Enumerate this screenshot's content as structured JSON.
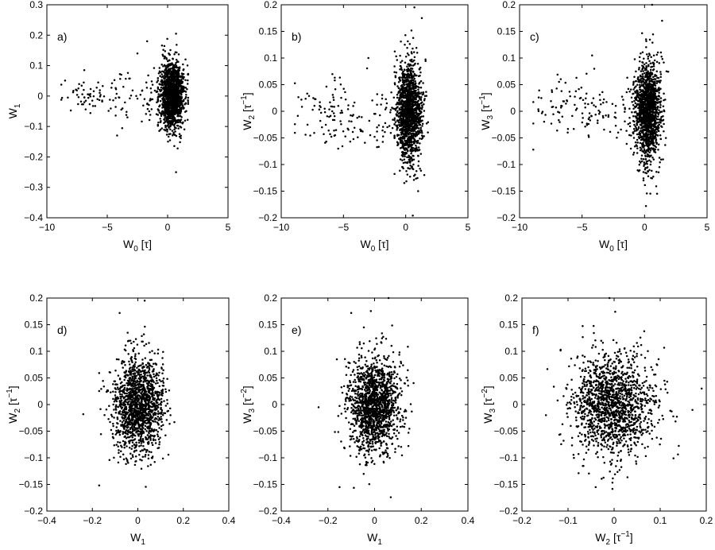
{
  "figure": {
    "panels": [
      {
        "id": "a",
        "panel_label": "a)",
        "xlabel": {
          "base": "W",
          "sub": "0",
          "unit": " [τ]",
          "sup": ""
        },
        "ylabel": {
          "base": "W",
          "sub": "1",
          "unit": "",
          "sup": ""
        }
      },
      {
        "id": "b",
        "panel_label": "b)",
        "xlabel": {
          "base": "W",
          "sub": "0",
          "unit": " [τ]",
          "sup": ""
        },
        "ylabel": {
          "base": "W",
          "sub": "2",
          "unit": " [τ",
          "sup": "−1",
          "close": "]"
        }
      },
      {
        "id": "c",
        "panel_label": "c)",
        "xlabel": {
          "base": "W",
          "sub": "0",
          "unit": " [τ]",
          "sup": ""
        },
        "ylabel": {
          "base": "W",
          "sub": "3",
          "unit": " [τ",
          "sup": "−1",
          "close": "]"
        }
      },
      {
        "id": "d",
        "panel_label": "d)",
        "xlabel": {
          "base": "W",
          "sub": "1",
          "unit": "",
          "sup": ""
        },
        "ylabel": {
          "base": "W",
          "sub": "2",
          "unit": " [τ",
          "sup": "−1",
          "close": "]"
        }
      },
      {
        "id": "e",
        "panel_label": "e)",
        "xlabel": {
          "base": "W",
          "sub": "1",
          "unit": "",
          "sup": ""
        },
        "ylabel": {
          "base": "W",
          "sub": "3",
          "unit": " [τ",
          "sup": "−2",
          "close": "]"
        }
      },
      {
        "id": "f",
        "panel_label": "f)",
        "xlabel": {
          "base": "W",
          "sub": "2",
          "unit": " [τ",
          "sup": "−1",
          "close": "]"
        },
        "ylabel": {
          "base": "W",
          "sub": "3",
          "unit": " [τ",
          "sup": "−2",
          "close": "]"
        }
      }
    ]
  },
  "chart_data": [
    {
      "panel": "a)",
      "type": "scatter",
      "grid": false,
      "marker_color": "#000000",
      "xlim": [
        -10,
        5
      ],
      "ylim": [
        -0.4,
        0.3
      ],
      "xticks": [
        "−10",
        "−5",
        "0",
        "5"
      ],
      "xtick_values": [
        -10,
        -5,
        0,
        5
      ],
      "yticks": [
        "−0.4",
        "−0.3",
        "−0.2",
        "−0.1",
        "0",
        "0.1",
        "0.2",
        "0.3"
      ],
      "ytick_values": [
        -0.4,
        -0.3,
        -0.2,
        -0.1,
        0,
        0.1,
        0.2,
        0.3
      ],
      "clusters": [
        {
          "n": 60,
          "x_mean": -6.5,
          "x_sd": 1.3,
          "x_min": -8.8,
          "x_max": -4.4,
          "y_mean": 0.0,
          "y_sd": 0.03
        },
        {
          "n": 28,
          "x_mean": -3.6,
          "x_sd": 0.55,
          "x_min": -4.3,
          "x_max": -2.6,
          "y_mean": 0.0,
          "y_sd": 0.05
        },
        {
          "n": 55,
          "x_mean": -1.0,
          "x_sd": 0.8,
          "x_min": -2.5,
          "x_max": -0.2,
          "y_mean": 0.0,
          "y_sd": 0.05
        },
        {
          "n": 1400,
          "x_mean": 0.4,
          "x_sd": 0.5,
          "x_min": -0.8,
          "x_max": 1.7,
          "y_mean": 0.0,
          "y_sd": 0.055
        }
      ],
      "points": [
        [
          0.7,
          0.205
        ],
        [
          0.7,
          -0.25
        ],
        [
          -6.9,
          0.085
        ],
        [
          -1.7,
          0.18
        ],
        [
          -2.5,
          0.14
        ]
      ]
    },
    {
      "panel": "b)",
      "type": "scatter",
      "grid": false,
      "marker_color": "#000000",
      "xlim": [
        -10,
        5
      ],
      "ylim": [
        -0.2,
        0.2
      ],
      "xticks": [
        "−10",
        "−5",
        "0",
        "5"
      ],
      "xtick_values": [
        -10,
        -5,
        0,
        5
      ],
      "yticks": [
        "−0.2",
        "−0.15",
        "−0.1",
        "−0.05",
        "0",
        "0.05",
        "0.1",
        "0.15",
        "0.2"
      ],
      "ytick_values": [
        -0.2,
        -0.15,
        -0.1,
        -0.05,
        0,
        0.05,
        0.1,
        0.15,
        0.2
      ],
      "clusters": [
        {
          "n": 110,
          "x_mean": -5.5,
          "x_sd": 2.0,
          "x_min": -8.9,
          "x_max": -2.3,
          "y_mean": -0.005,
          "y_sd": 0.03
        },
        {
          "n": 45,
          "x_mean": -1.2,
          "x_sd": 0.7,
          "x_min": -2.5,
          "x_max": -0.2,
          "y_mean": 0.0,
          "y_sd": 0.035
        },
        {
          "n": 1400,
          "x_mean": 0.3,
          "x_sd": 0.5,
          "x_min": -0.9,
          "x_max": 1.9,
          "y_mean": 0.0,
          "y_sd": 0.045
        }
      ],
      "points": [
        [
          0.7,
          0.195
        ],
        [
          1.0,
          -0.15
        ],
        [
          -3.0,
          0.1
        ],
        [
          1.3,
          0.175
        ]
      ]
    },
    {
      "panel": "c)",
      "type": "scatter",
      "grid": false,
      "marker_color": "#000000",
      "xlim": [
        -10,
        5
      ],
      "ylim": [
        -0.2,
        0.2
      ],
      "xticks": [
        "−10",
        "−5",
        "0",
        "5"
      ],
      "xtick_values": [
        -10,
        -5,
        0,
        5
      ],
      "yticks": [
        "−0.2",
        "−0.15",
        "−0.1",
        "−0.05",
        "0",
        "0.05",
        "0.1",
        "0.15",
        "0.2"
      ],
      "ytick_values": [
        -0.2,
        -0.15,
        -0.1,
        -0.05,
        0,
        0.05,
        0.1,
        0.15,
        0.2
      ],
      "clusters": [
        {
          "n": 110,
          "x_mean": -5.5,
          "x_sd": 2.0,
          "x_min": -8.9,
          "x_max": -2.3,
          "y_mean": 0.0,
          "y_sd": 0.032
        },
        {
          "n": 45,
          "x_mean": -1.2,
          "x_sd": 0.7,
          "x_min": -2.5,
          "x_max": -0.2,
          "y_mean": 0.0,
          "y_sd": 0.035
        },
        {
          "n": 1400,
          "x_mean": 0.3,
          "x_sd": 0.5,
          "x_min": -0.9,
          "x_max": 1.9,
          "y_mean": 0.0,
          "y_sd": 0.045
        }
      ],
      "points": [
        [
          0.6,
          0.2
        ],
        [
          1.0,
          -0.155
        ],
        [
          -4.2,
          0.105
        ],
        [
          1.4,
          0.17
        ]
      ]
    },
    {
      "panel": "d)",
      "type": "scatter",
      "grid": false,
      "marker_color": "#000000",
      "xlim": [
        -0.4,
        0.4
      ],
      "ylim": [
        -0.2,
        0.2
      ],
      "xticks": [
        "−0.4",
        "−0.2",
        "0",
        "0.2",
        "0.4"
      ],
      "xtick_values": [
        -0.4,
        -0.2,
        0,
        0.2,
        0.4
      ],
      "yticks": [
        "−0.2",
        "−0.15",
        "−0.1",
        "−0.05",
        "0",
        "0.05",
        "0.1",
        "0.15",
        "0.2"
      ],
      "ytick_values": [
        -0.2,
        -0.15,
        -0.1,
        -0.05,
        0,
        0.05,
        0.1,
        0.15,
        0.2
      ],
      "clusters": [
        {
          "n": 1500,
          "x_mean": 0.0,
          "x_sd": 0.055,
          "x_min": -0.17,
          "x_max": 0.23,
          "y_mean": 0.0,
          "y_sd": 0.045
        }
      ],
      "points": [
        [
          -0.24,
          -0.018
        ],
        [
          -0.17,
          -0.152
        ],
        [
          0.03,
          0.195
        ],
        [
          -0.08,
          0.172
        ]
      ]
    },
    {
      "panel": "e)",
      "type": "scatter",
      "grid": false,
      "marker_color": "#000000",
      "xlim": [
        -0.4,
        0.4
      ],
      "ylim": [
        -0.2,
        0.2
      ],
      "xticks": [
        "−0.4",
        "−0.2",
        "0",
        "0.2",
        "0.4"
      ],
      "xtick_values": [
        -0.4,
        -0.2,
        0,
        0.2,
        0.4
      ],
      "yticks": [
        "−0.2",
        "−0.15",
        "−0.1",
        "−0.05",
        "0",
        "0.05",
        "0.1",
        "0.15",
        "0.2"
      ],
      "ytick_values": [
        -0.2,
        -0.15,
        -0.1,
        -0.05,
        0,
        0.05,
        0.1,
        0.15,
        0.2
      ],
      "clusters": [
        {
          "n": 1500,
          "x_mean": 0.0,
          "x_sd": 0.055,
          "x_min": -0.17,
          "x_max": 0.2,
          "y_mean": 0.0,
          "y_sd": 0.045
        }
      ],
      "points": [
        [
          -0.24,
          -0.005
        ],
        [
          -0.15,
          -0.155
        ],
        [
          0.06,
          0.2
        ],
        [
          -0.1,
          0.172
        ]
      ]
    },
    {
      "panel": "f)",
      "type": "scatter",
      "grid": false,
      "marker_color": "#000000",
      "xlim": [
        -0.2,
        0.2
      ],
      "ylim": [
        -0.2,
        0.2
      ],
      "xticks": [
        "−0.2",
        "−0.1",
        "0",
        "0.1",
        "0.2"
      ],
      "xtick_values": [
        -0.2,
        -0.1,
        0,
        0.1,
        0.2
      ],
      "yticks": [
        "−0.2",
        "−0.15",
        "−0.1",
        "−0.05",
        "0",
        "0.05",
        "0.1",
        "0.15",
        "0.2"
      ],
      "ytick_values": [
        -0.2,
        -0.15,
        -0.1,
        -0.05,
        0,
        0.05,
        0.1,
        0.15,
        0.2
      ],
      "clusters": [
        {
          "n": 1500,
          "x_mean": 0.0,
          "x_sd": 0.045,
          "x_min": -0.16,
          "x_max": 0.19,
          "y_mean": 0.0,
          "y_sd": 0.045
        }
      ],
      "points": [
        [
          -0.148,
          -0.02
        ],
        [
          0.19,
          0.03
        ],
        [
          -0.04,
          -0.155
        ],
        [
          -0.01,
          0.2
        ],
        [
          0.17,
          -0.01
        ]
      ]
    }
  ]
}
